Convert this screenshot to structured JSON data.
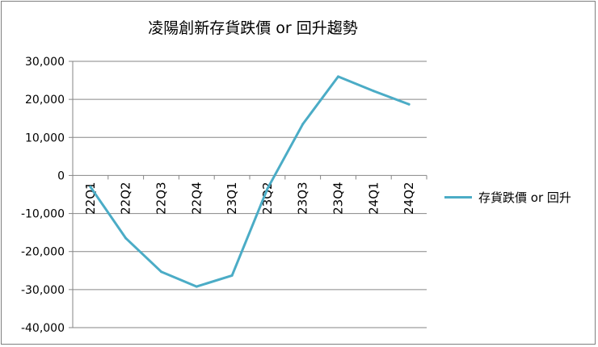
{
  "chart_data": {
    "type": "line",
    "title": "凌陽創新存貨跌價 or 回升趨勢",
    "xlabel": "",
    "ylabel": "",
    "categories": [
      "22Q1",
      "22Q2",
      "22Q3",
      "22Q4",
      "23Q1",
      "23Q2",
      "23Q3",
      "23Q4",
      "24Q1",
      "24Q2"
    ],
    "series": [
      {
        "name": "存貨跌價 or 回升",
        "color": "#4bacc6",
        "values": [
          -3000,
          -16500,
          -25300,
          -29200,
          -26300,
          -3500,
          13500,
          26000,
          22200,
          18700
        ]
      }
    ],
    "ylim": [
      -40000,
      30000
    ],
    "yticks": [
      30000,
      20000,
      10000,
      0,
      -10000,
      -20000,
      -30000,
      -40000
    ],
    "ytick_labels": [
      "30,000",
      "20,000",
      "10,000",
      "0",
      "-10,000",
      "-20,000",
      "-30,000",
      "-40,000"
    ],
    "grid": true,
    "legend": "right",
    "gridline_color": "#868686"
  }
}
